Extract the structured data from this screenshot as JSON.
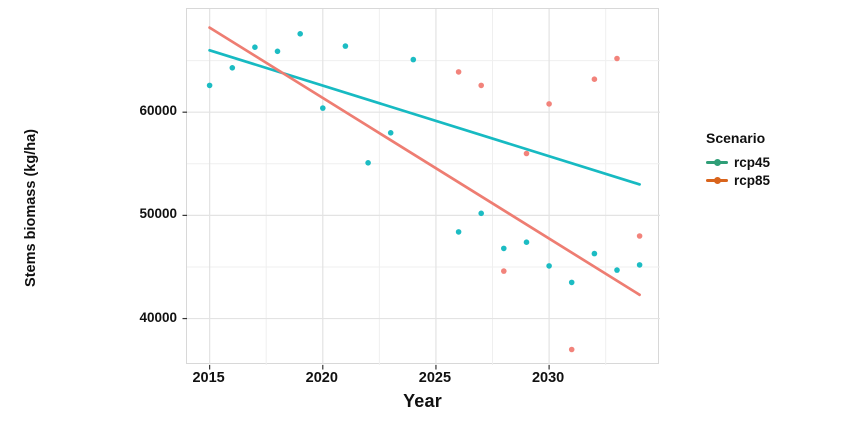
{
  "figure": {
    "x_axis_label": "Year",
    "y_axis_label": "Stems biomass (kg/ha)"
  },
  "legend": {
    "title": "Scenario",
    "items": [
      {
        "label": "rcp45",
        "color": "#2F9E77"
      },
      {
        "label": "rcp85",
        "color": "#D9641C"
      }
    ]
  },
  "colors": {
    "grid_major": "#e3e3e3",
    "grid_minor": "#efefef",
    "tick_mark": "#333333",
    "panel_border": "#d8d8d8",
    "text": "#111111"
  },
  "chart_data": {
    "type": "scatter",
    "title": "",
    "xlabel": "Year",
    "ylabel": "Stems biomass (kg/ha)",
    "x_range": [
      2014,
      2034.9
    ],
    "y_range": [
      35500,
      70000
    ],
    "x_ticks_major": [
      2015,
      2020,
      2025,
      2030
    ],
    "x_ticks_minor": [
      2017.5,
      2022.5,
      2027.5,
      2032.5
    ],
    "y_ticks_major": [
      40000,
      50000,
      60000
    ],
    "y_ticks_minor": [
      45000,
      55000,
      65000
    ],
    "grid": true,
    "legend_position": "right",
    "legend_title": "Scenario",
    "series": [
      {
        "name": "rcp45",
        "point_color": "#1cbcc3",
        "line_color": "#17bac2",
        "points": [
          [
            2015,
            62600
          ],
          [
            2016,
            64300
          ],
          [
            2017,
            66300
          ],
          [
            2018,
            65900
          ],
          [
            2019,
            67600
          ],
          [
            2020,
            60400
          ],
          [
            2021,
            66400
          ],
          [
            2022,
            55100
          ],
          [
            2023,
            58000
          ],
          [
            2024,
            65100
          ],
          [
            2026,
            48400
          ],
          [
            2027,
            50200
          ],
          [
            2028,
            46800
          ],
          [
            2029,
            47400
          ],
          [
            2030,
            45100
          ],
          [
            2031,
            43500
          ],
          [
            2032,
            46300
          ],
          [
            2033,
            44700
          ],
          [
            2034,
            45200
          ]
        ],
        "trend_line": [
          [
            2015,
            66000
          ],
          [
            2034,
            53000
          ]
        ]
      },
      {
        "name": "rcp85",
        "point_color": "#f2837b",
        "line_color": "#ee7d72",
        "points": [
          [
            2026,
            63900
          ],
          [
            2027,
            62600
          ],
          [
            2028,
            44600
          ],
          [
            2029,
            56000
          ],
          [
            2030,
            60800
          ],
          [
            2031,
            37000
          ],
          [
            2032,
            63200
          ],
          [
            2033,
            65200
          ],
          [
            2034,
            48000
          ]
        ],
        "trend_line": [
          [
            2015,
            68200
          ],
          [
            2034,
            42300
          ]
        ]
      }
    ]
  }
}
